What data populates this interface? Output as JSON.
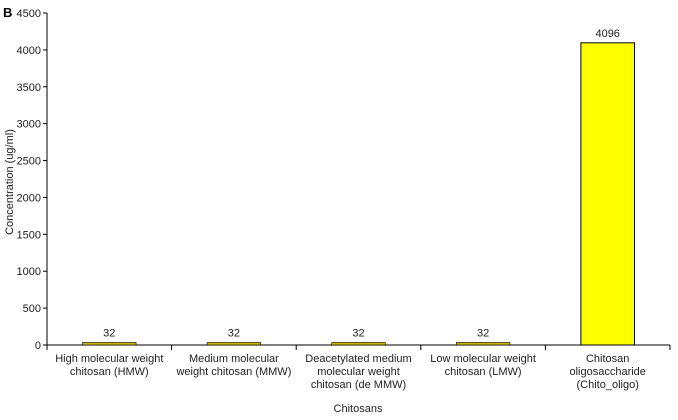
{
  "panel_label": "B",
  "chart_data": {
    "type": "bar",
    "title": "",
    "xlabel": "Chitosans",
    "ylabel": "Concentration (ug/ml)",
    "ylim": [
      0,
      4500
    ],
    "yticks": [
      0,
      500,
      1000,
      1500,
      2000,
      2500,
      3000,
      3500,
      4000,
      4500
    ],
    "grid": false,
    "legend": "none",
    "categories": [
      [
        "High molecular weight",
        "chitosan (HMW)"
      ],
      [
        "Medium molecular",
        "weight chitosan (MMW)"
      ],
      [
        "Deacetylated medium",
        "molecular weight",
        "chitosan (de MMW)"
      ],
      [
        "Low molecular weight",
        "chitosan (LMW)"
      ],
      [
        "Chitosan",
        "oligosaccharide",
        "(Chito_oligo)"
      ]
    ],
    "values": [
      32,
      32,
      32,
      32,
      4096
    ],
    "data_labels": [
      "32",
      "32",
      "32",
      "32",
      "4096"
    ],
    "bar_color": "#ffff00",
    "bar_edge_color": "#000000",
    "small_bar_color": "#c8b400"
  }
}
